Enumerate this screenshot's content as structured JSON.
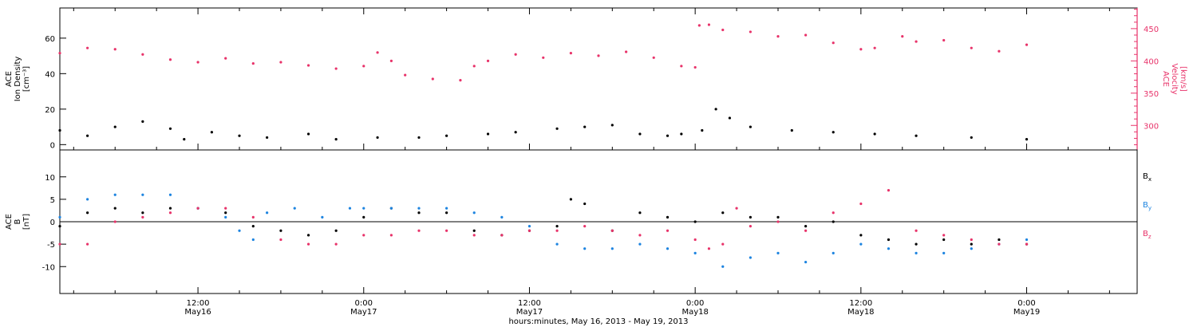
{
  "chart_data": [
    {
      "type": "scatter",
      "panel": "plasma",
      "x_unit": "hours since 2013-05-15 00:00 UT",
      "xlim": [
        2,
        80
      ],
      "xtick_values": [
        12,
        24,
        36,
        48,
        60,
        72
      ],
      "xtick_top": [
        "12:00",
        "0:00",
        "12:00",
        "0:00",
        "12:00",
        "0:00"
      ],
      "xtick_bottom": [
        "May16",
        "May17",
        "May17",
        "May18",
        "May18",
        "May19"
      ],
      "xlabel": "hours:minutes, May 16, 2013 - May 19, 2013",
      "left_axis": {
        "label_lines": [
          "ACE",
          "Ion Density",
          "[cm⁻³]"
        ],
        "ylim": [
          -3,
          77
        ],
        "ticks": [
          0,
          20,
          40,
          60
        ],
        "color": "#000000"
      },
      "right_axis": {
        "label_lines": [
          "ACE",
          "Velocity",
          "[km/s]"
        ],
        "ylim": [
          262,
          482
        ],
        "ticks": [
          300,
          350,
          400,
          450
        ],
        "color": "#e8336a"
      },
      "series": [
        {
          "axis": "left",
          "color": "#000000",
          "points": [
            [
              2,
              8
            ],
            [
              4,
              5
            ],
            [
              6,
              10
            ],
            [
              8,
              13
            ],
            [
              10,
              9
            ],
            [
              11,
              3
            ],
            [
              13,
              7
            ],
            [
              15,
              5
            ],
            [
              17,
              4
            ],
            [
              20,
              6
            ],
            [
              22,
              3
            ],
            [
              25,
              4
            ],
            [
              28,
              4
            ],
            [
              30,
              5
            ],
            [
              33,
              6
            ],
            [
              35,
              7
            ],
            [
              38,
              9
            ],
            [
              40,
              10
            ],
            [
              42,
              11
            ],
            [
              44,
              6
            ],
            [
              46,
              5
            ],
            [
              47,
              6
            ],
            [
              48.5,
              8
            ],
            [
              49.5,
              20
            ],
            [
              50.5,
              15
            ],
            [
              52,
              10
            ],
            [
              55,
              8
            ],
            [
              58,
              7
            ],
            [
              61,
              6
            ],
            [
              64,
              5
            ],
            [
              68,
              4
            ],
            [
              72,
              3
            ]
          ]
        },
        {
          "axis": "right",
          "color": "#e8336a",
          "points": [
            [
              2,
              412
            ],
            [
              4,
              420
            ],
            [
              6,
              418
            ],
            [
              8,
              410
            ],
            [
              10,
              402
            ],
            [
              12,
              398
            ],
            [
              14,
              404
            ],
            [
              16,
              396
            ],
            [
              18,
              398
            ],
            [
              20,
              393
            ],
            [
              22,
              388
            ],
            [
              24,
              392
            ],
            [
              25,
              413
            ],
            [
              26,
              400
            ],
            [
              27,
              378
            ],
            [
              29,
              372
            ],
            [
              31,
              370
            ],
            [
              32,
              392
            ],
            [
              33,
              400
            ],
            [
              35,
              410
            ],
            [
              37,
              405
            ],
            [
              39,
              412
            ],
            [
              41,
              408
            ],
            [
              43,
              414
            ],
            [
              45,
              405
            ],
            [
              47,
              392
            ],
            [
              48,
              390
            ],
            [
              48.3,
              455
            ],
            [
              49,
              456
            ],
            [
              50,
              448
            ],
            [
              52,
              445
            ],
            [
              54,
              438
            ],
            [
              56,
              440
            ],
            [
              58,
              428
            ],
            [
              60,
              418
            ],
            [
              61,
              420
            ],
            [
              63,
              438
            ],
            [
              64,
              430
            ],
            [
              66,
              432
            ],
            [
              68,
              420
            ],
            [
              70,
              415
            ],
            [
              72,
              425
            ]
          ]
        }
      ]
    },
    {
      "type": "scatter",
      "panel": "magnetic field",
      "x_unit": "hours since 2013-05-15 00:00 UT",
      "xlim": [
        2,
        80
      ],
      "axis_label_lines": [
        "ACE",
        "B",
        "[nT]"
      ],
      "ylim": [
        -16,
        16
      ],
      "yticks": [
        -10,
        -5,
        0,
        5,
        10
      ],
      "zero_line": true,
      "legend_position": "right",
      "series": [
        {
          "name": "Bx",
          "color": "#000000",
          "points": [
            [
              2,
              -1
            ],
            [
              4,
              2
            ],
            [
              6,
              3
            ],
            [
              8,
              2
            ],
            [
              10,
              3
            ],
            [
              12,
              3
            ],
            [
              14,
              2
            ],
            [
              16,
              -1
            ],
            [
              18,
              -2
            ],
            [
              20,
              -3
            ],
            [
              22,
              -2
            ],
            [
              24,
              1
            ],
            [
              26,
              3
            ],
            [
              28,
              2
            ],
            [
              30,
              2
            ],
            [
              32,
              -2
            ],
            [
              34,
              -3
            ],
            [
              36,
              -2
            ],
            [
              38,
              -1
            ],
            [
              39,
              5
            ],
            [
              40,
              4
            ],
            [
              42,
              -2
            ],
            [
              44,
              2
            ],
            [
              46,
              1
            ],
            [
              48,
              0
            ],
            [
              50,
              2
            ],
            [
              52,
              1
            ],
            [
              54,
              1
            ],
            [
              56,
              -1
            ],
            [
              58,
              0
            ],
            [
              60,
              -3
            ],
            [
              62,
              -4
            ],
            [
              64,
              -5
            ],
            [
              66,
              -4
            ],
            [
              68,
              -5
            ],
            [
              70,
              -4
            ],
            [
              72,
              -5
            ]
          ]
        },
        {
          "name": "By",
          "color": "#1d84e0",
          "points": [
            [
              2,
              1
            ],
            [
              4,
              5
            ],
            [
              6,
              6
            ],
            [
              8,
              6
            ],
            [
              10,
              6
            ],
            [
              12,
              3
            ],
            [
              14,
              1
            ],
            [
              15,
              -2
            ],
            [
              16,
              -4
            ],
            [
              17,
              2
            ],
            [
              19,
              3
            ],
            [
              21,
              1
            ],
            [
              23,
              3
            ],
            [
              24,
              3
            ],
            [
              26,
              3
            ],
            [
              28,
              3
            ],
            [
              30,
              3
            ],
            [
              32,
              2
            ],
            [
              34,
              1
            ],
            [
              36,
              -1
            ],
            [
              38,
              -5
            ],
            [
              40,
              -6
            ],
            [
              42,
              -6
            ],
            [
              44,
              -5
            ],
            [
              46,
              -6
            ],
            [
              48,
              -7
            ],
            [
              50,
              -10
            ],
            [
              52,
              -8
            ],
            [
              54,
              -7
            ],
            [
              56,
              -9
            ],
            [
              58,
              -7
            ],
            [
              60,
              -5
            ],
            [
              62,
              -6
            ],
            [
              64,
              -7
            ],
            [
              66,
              -7
            ],
            [
              68,
              -6
            ],
            [
              70,
              -5
            ],
            [
              72,
              -4
            ]
          ]
        },
        {
          "name": "Bz",
          "color": "#e8336a",
          "points": [
            [
              2,
              -5
            ],
            [
              4,
              -5
            ],
            [
              6,
              0
            ],
            [
              8,
              1
            ],
            [
              10,
              2
            ],
            [
              12,
              3
            ],
            [
              14,
              3
            ],
            [
              16,
              1
            ],
            [
              18,
              -4
            ],
            [
              20,
              -5
            ],
            [
              22,
              -5
            ],
            [
              24,
              -3
            ],
            [
              26,
              -3
            ],
            [
              28,
              -2
            ],
            [
              30,
              -2
            ],
            [
              32,
              -3
            ],
            [
              34,
              -3
            ],
            [
              36,
              -2
            ],
            [
              38,
              -2
            ],
            [
              40,
              -1
            ],
            [
              42,
              -2
            ],
            [
              44,
              -3
            ],
            [
              46,
              -2
            ],
            [
              48,
              -4
            ],
            [
              49,
              -6
            ],
            [
              50,
              -5
            ],
            [
              51,
              3
            ],
            [
              52,
              -1
            ],
            [
              54,
              0
            ],
            [
              56,
              -2
            ],
            [
              58,
              2
            ],
            [
              60,
              4
            ],
            [
              62,
              7
            ],
            [
              64,
              -2
            ],
            [
              66,
              -3
            ],
            [
              68,
              -4
            ],
            [
              70,
              -5
            ],
            [
              72,
              -5
            ]
          ]
        }
      ]
    }
  ]
}
